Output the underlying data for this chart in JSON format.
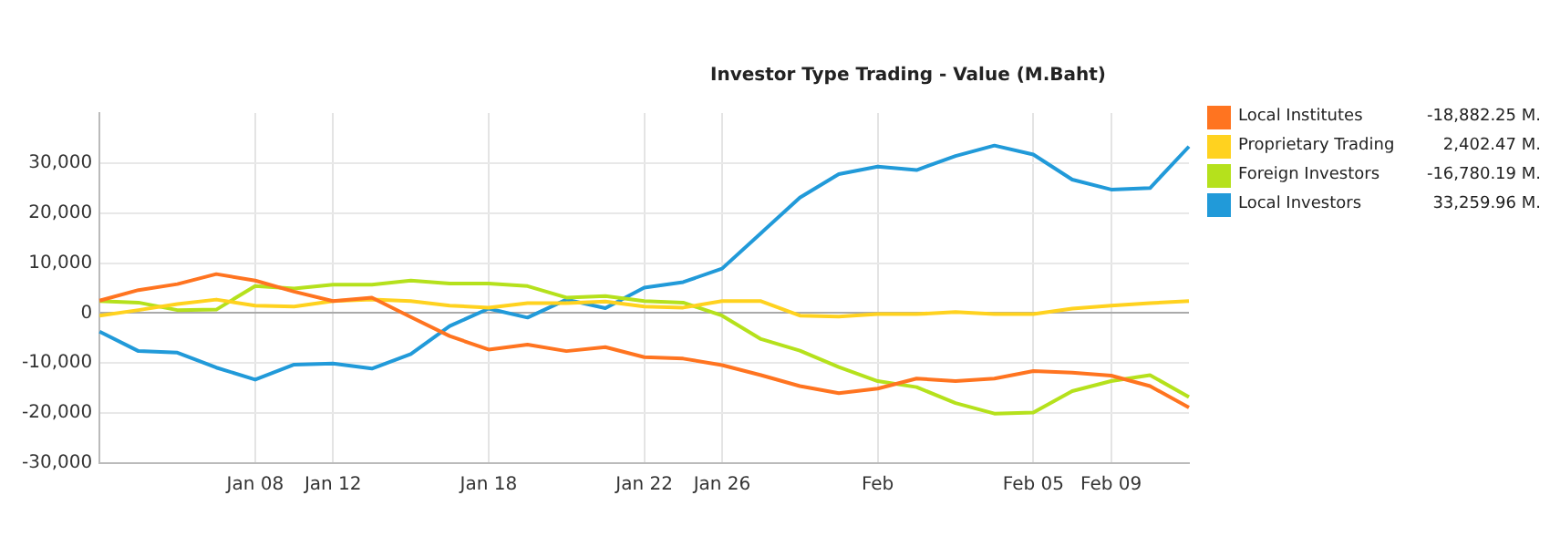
{
  "chart_data": {
    "type": "line",
    "title": "Investor Type Trading - Value (M.Baht)",
    "categories": [
      null,
      null,
      null,
      null,
      "Jan 08",
      null,
      "Jan 12",
      null,
      null,
      null,
      "Jan 18",
      null,
      null,
      null,
      "Jan 22",
      null,
      "Jan 26",
      null,
      null,
      null,
      "Feb",
      null,
      null,
      null,
      "Feb 05",
      null,
      "Feb 09",
      null,
      null
    ],
    "series": [
      {
        "name": "Local Institutes",
        "color": "#ff7420",
        "values": [
          2500,
          4600,
          5800,
          7800,
          6500,
          4300,
          2400,
          3100,
          -800,
          -4600,
          -7300,
          -6300,
          -7600,
          -6800,
          -8800,
          -9100,
          -10400,
          -12400,
          -14600,
          -16000,
          -15100,
          -13100,
          -13600,
          -13100,
          -11600,
          -11900,
          -12500,
          -14600,
          -18900
        ]
      },
      {
        "name": "Proprietary Trading",
        "color": "#ffd21f",
        "values": [
          -500,
          600,
          1800,
          2700,
          1500,
          1300,
          2400,
          2700,
          2400,
          1500,
          1100,
          2000,
          2000,
          2300,
          1300,
          1100,
          2400,
          2400,
          -500,
          -700,
          -200,
          -200,
          200,
          -200,
          -200,
          900,
          1500,
          2000,
          2400
        ]
      },
      {
        "name": "Foreign Investors",
        "color": "#b5e11c",
        "values": [
          2400,
          2100,
          600,
          700,
          5400,
          4900,
          5700,
          5700,
          6500,
          5900,
          5900,
          5400,
          3100,
          3400,
          2400,
          2100,
          -500,
          -5200,
          -7500,
          -10800,
          -13600,
          -14800,
          -18000,
          -20100,
          -19900,
          -15600,
          -13600,
          -12400,
          -16800
        ]
      },
      {
        "name": "Local Investors",
        "color": "#219ad9",
        "values": [
          -3700,
          -7600,
          -7900,
          -10900,
          -13300,
          -10300,
          -10100,
          -11100,
          -8200,
          -2600,
          900,
          -900,
          2700,
          1000,
          5100,
          6200,
          8900,
          16000,
          23100,
          27800,
          29300,
          28600,
          31400,
          33500,
          31700,
          26700,
          24700,
          25000,
          33300
        ]
      }
    ],
    "annotations": [
      "-18,882.25 M.",
      "2,402.47 M.",
      "-16,780.19 M.",
      "33,259.96 M."
    ],
    "ylim": [
      -30000,
      40000
    ],
    "yticks": [
      {
        "value": -30000,
        "label": "-30,000"
      },
      {
        "value": -20000,
        "label": "-20,000"
      },
      {
        "value": -10000,
        "label": "-10,000"
      },
      0,
      {
        "value": 10000,
        "label": "10,000"
      },
      {
        "value": 20000,
        "label": "20,000"
      },
      {
        "value": 30000,
        "label": "30,000"
      }
    ],
    "grid": true,
    "legend": "right",
    "marker": "none",
    "line_style": "solid"
  }
}
